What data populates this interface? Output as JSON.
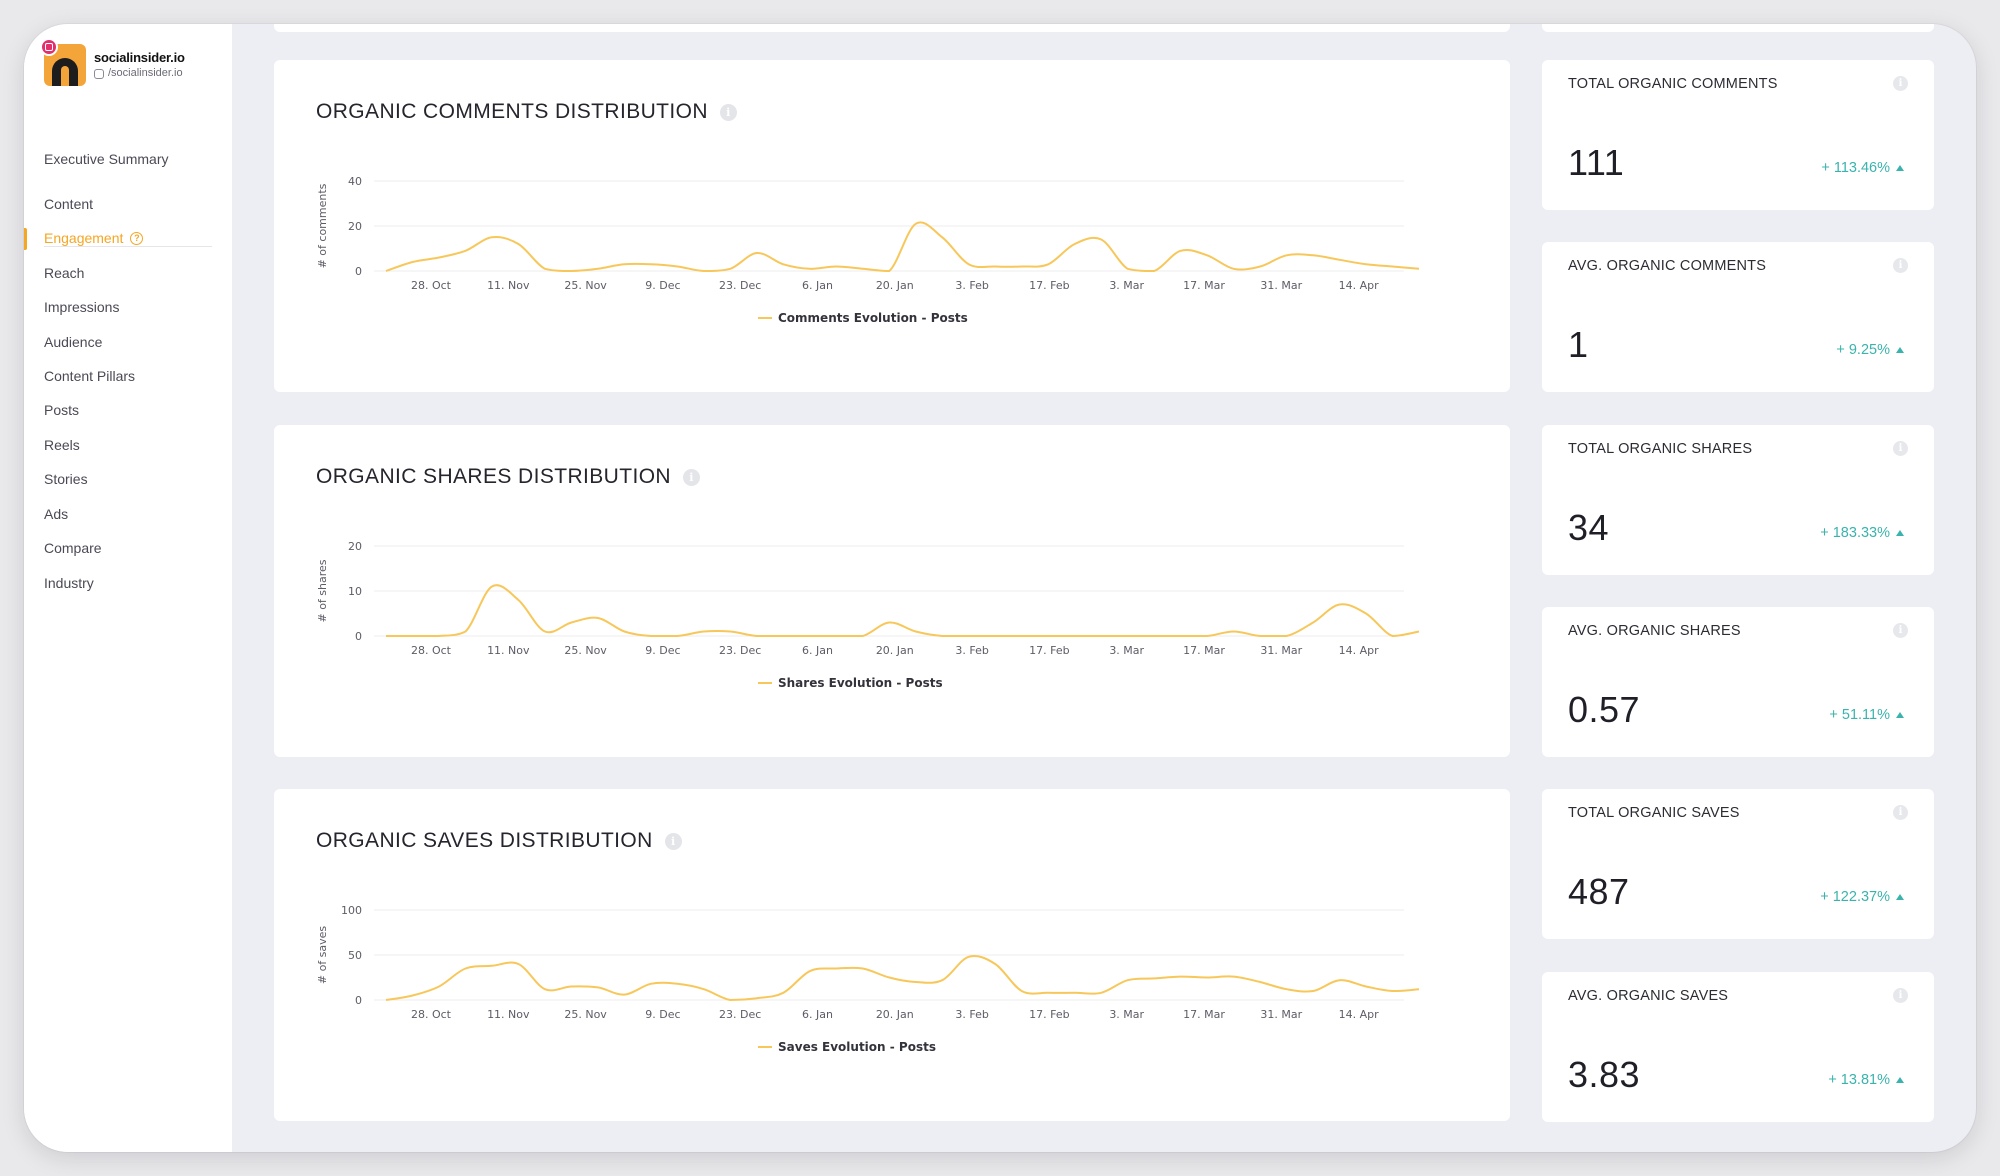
{
  "brand": {
    "name": "socialinsider.io",
    "handle": "/socialinsider.io"
  },
  "nav": {
    "items": [
      {
        "label": "Executive Summary"
      },
      {
        "label": "Content"
      },
      {
        "label": "Engagement",
        "active": true
      },
      {
        "label": "Reach"
      },
      {
        "label": "Impressions"
      },
      {
        "label": "Audience"
      },
      {
        "label": "Content Pillars"
      },
      {
        "label": "Posts"
      },
      {
        "label": "Reels"
      },
      {
        "label": "Stories"
      },
      {
        "label": "Ads"
      },
      {
        "label": "Compare"
      },
      {
        "label": "Industry"
      }
    ]
  },
  "colors": {
    "accent": "#f5a623",
    "line": "#f7c75a",
    "positive": "#3bb3ad",
    "grid": "#ececef"
  },
  "chart_data": [
    {
      "type": "line",
      "title": "ORGANIC COMMENTS DISTRIBUTION",
      "ylabel": "# of comments",
      "yticks": [
        0,
        20,
        40
      ],
      "ylim": [
        0,
        40
      ],
      "xticks": [
        "28. Oct",
        "11. Nov",
        "25. Nov",
        "9. Dec",
        "23. Dec",
        "6. Jan",
        "20. Jan",
        "3. Feb",
        "17. Feb",
        "3. Mar",
        "17. Mar",
        "31. Mar",
        "14. Apr"
      ],
      "series": [
        {
          "name": "Comments Evolution - Posts",
          "values": [
            0,
            4,
            6,
            9,
            15,
            12,
            1,
            0,
            1,
            3,
            3,
            2,
            0,
            1,
            8,
            3,
            1,
            2,
            1,
            0,
            21,
            15,
            3,
            2,
            2,
            3,
            12,
            14,
            1,
            0,
            9,
            7,
            1,
            2,
            7,
            7,
            5,
            3,
            2,
            1
          ]
        }
      ]
    },
    {
      "type": "line",
      "title": "ORGANIC SHARES DISTRIBUTION",
      "ylabel": "# of shares",
      "yticks": [
        0,
        10,
        20
      ],
      "ylim": [
        0,
        20
      ],
      "xticks": [
        "28. Oct",
        "11. Nov",
        "25. Nov",
        "9. Dec",
        "23. Dec",
        "6. Jan",
        "20. Jan",
        "3. Feb",
        "17. Feb",
        "3. Mar",
        "17. Mar",
        "31. Mar",
        "14. Apr"
      ],
      "series": [
        {
          "name": "Shares Evolution - Posts",
          "values": [
            0,
            0,
            0,
            1,
            11,
            8,
            1,
            3,
            4,
            1,
            0,
            0,
            1,
            1,
            0,
            0,
            0,
            0,
            0,
            3,
            1,
            0,
            0,
            0,
            0,
            0,
            0,
            0,
            0,
            0,
            0,
            0,
            1,
            0,
            0,
            3,
            7,
            5,
            0,
            1
          ]
        }
      ]
    },
    {
      "type": "line",
      "title": "ORGANIC SAVES DISTRIBUTION",
      "ylabel": "# of saves",
      "yticks": [
        0,
        50,
        100
      ],
      "ylim": [
        0,
        100
      ],
      "xticks": [
        "28. Oct",
        "11. Nov",
        "25. Nov",
        "9. Dec",
        "23. Dec",
        "6. Jan",
        "20. Jan",
        "3. Feb",
        "17. Feb",
        "3. Mar",
        "17. Mar",
        "31. Mar",
        "14. Apr"
      ],
      "series": [
        {
          "name": "Saves Evolution - Posts",
          "values": [
            0,
            5,
            15,
            35,
            38,
            40,
            12,
            15,
            14,
            6,
            18,
            18,
            12,
            0,
            2,
            8,
            32,
            35,
            35,
            25,
            20,
            22,
            48,
            40,
            10,
            8,
            8,
            8,
            22,
            24,
            26,
            25,
            26,
            20,
            12,
            10,
            22,
            15,
            10,
            12
          ]
        }
      ]
    }
  ],
  "stats": [
    {
      "title": "TOTAL ORGANIC COMMENTS",
      "value": "111",
      "delta": "+ 113.46%"
    },
    {
      "title": "AVG. ORGANIC COMMENTS",
      "value": "1",
      "delta": "+ 9.25%"
    },
    {
      "title": "TOTAL ORGANIC SHARES",
      "value": "34",
      "delta": "+ 183.33%"
    },
    {
      "title": "AVG. ORGANIC SHARES",
      "value": "0.57",
      "delta": "+ 51.11%"
    },
    {
      "title": "TOTAL ORGANIC SAVES",
      "value": "487",
      "delta": "+ 122.37%"
    },
    {
      "title": "AVG. ORGANIC SAVES",
      "value": "3.83",
      "delta": "+ 13.81%"
    }
  ]
}
